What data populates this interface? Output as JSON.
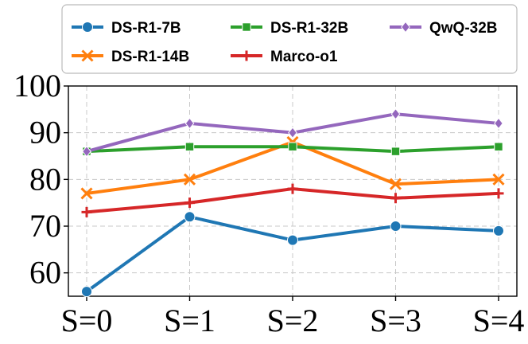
{
  "chart_data": {
    "type": "line",
    "title": "",
    "xlabel": "",
    "ylabel": "",
    "categories": [
      "S=0",
      "S=1",
      "S=2",
      "S=3",
      "S=4"
    ],
    "ylim": [
      55,
      100
    ],
    "yticks": [
      60,
      70,
      80,
      90,
      100
    ],
    "grid": true,
    "legend_position": "top",
    "series": [
      {
        "name": "DS-R1-7B",
        "color": "#1f77b4",
        "marker": "circle",
        "values": [
          56,
          72,
          67,
          70,
          69
        ]
      },
      {
        "name": "DS-R1-14B",
        "color": "#ff7f0e",
        "marker": "x",
        "values": [
          77,
          80,
          88,
          79,
          80
        ]
      },
      {
        "name": "DS-R1-32B",
        "color": "#2ca02c",
        "marker": "square",
        "values": [
          86,
          87,
          87,
          86,
          87
        ]
      },
      {
        "name": "Marco-o1",
        "color": "#d62728",
        "marker": "plus",
        "values": [
          73,
          75,
          78,
          76,
          77
        ]
      },
      {
        "name": "QwQ-32B",
        "color": "#9467bd",
        "marker": "diamond",
        "values": [
          86,
          92,
          90,
          94,
          92
        ]
      }
    ]
  }
}
